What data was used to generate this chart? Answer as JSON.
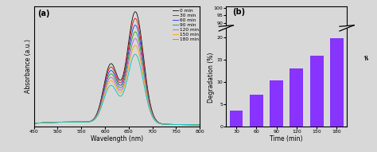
{
  "panel_a_label": "(a)",
  "panel_b_label": "(b)",
  "xlabel_a": "Wavelength (nm)",
  "ylabel_a": "Absorbance (a.u.)",
  "xlabel_b": "Time (min)",
  "ylabel_b": "Degradation (%)",
  "xlim_a": [
    450,
    800
  ],
  "xticks_a": [
    450,
    500,
    550,
    600,
    650,
    700,
    750,
    800
  ],
  "legend_labels": [
    "0 min",
    "30 min",
    "60 min",
    "90 min",
    "120 min",
    "150 min",
    "180 min"
  ],
  "line_colors": [
    "#1a1a1a",
    "#ee1111",
    "#2244ee",
    "#22aa22",
    "#cc55ff",
    "#ffaa00",
    "#00cccc"
  ],
  "bar_times": [
    30,
    60,
    90,
    120,
    150,
    180
  ],
  "bar_values": [
    3.5,
    7.0,
    10.2,
    13.0,
    15.8,
    19.8
  ],
  "bar_color": "#8833ff",
  "yticks_b_lower": [
    0,
    5,
    10,
    15,
    20
  ],
  "yticks_b_upper": [
    90,
    95,
    100
  ],
  "background_color": "#d8d8d8",
  "peak_wavelength": 664,
  "shoulder_wavelength": 612,
  "amplitudes": [
    1.0,
    0.94,
    0.88,
    0.82,
    0.76,
    0.7,
    0.62
  ],
  "shoulder_amps": [
    0.52,
    0.49,
    0.46,
    0.43,
    0.4,
    0.37,
    0.33
  ],
  "peak_sigma": 17,
  "shoulder_sigma": 15
}
